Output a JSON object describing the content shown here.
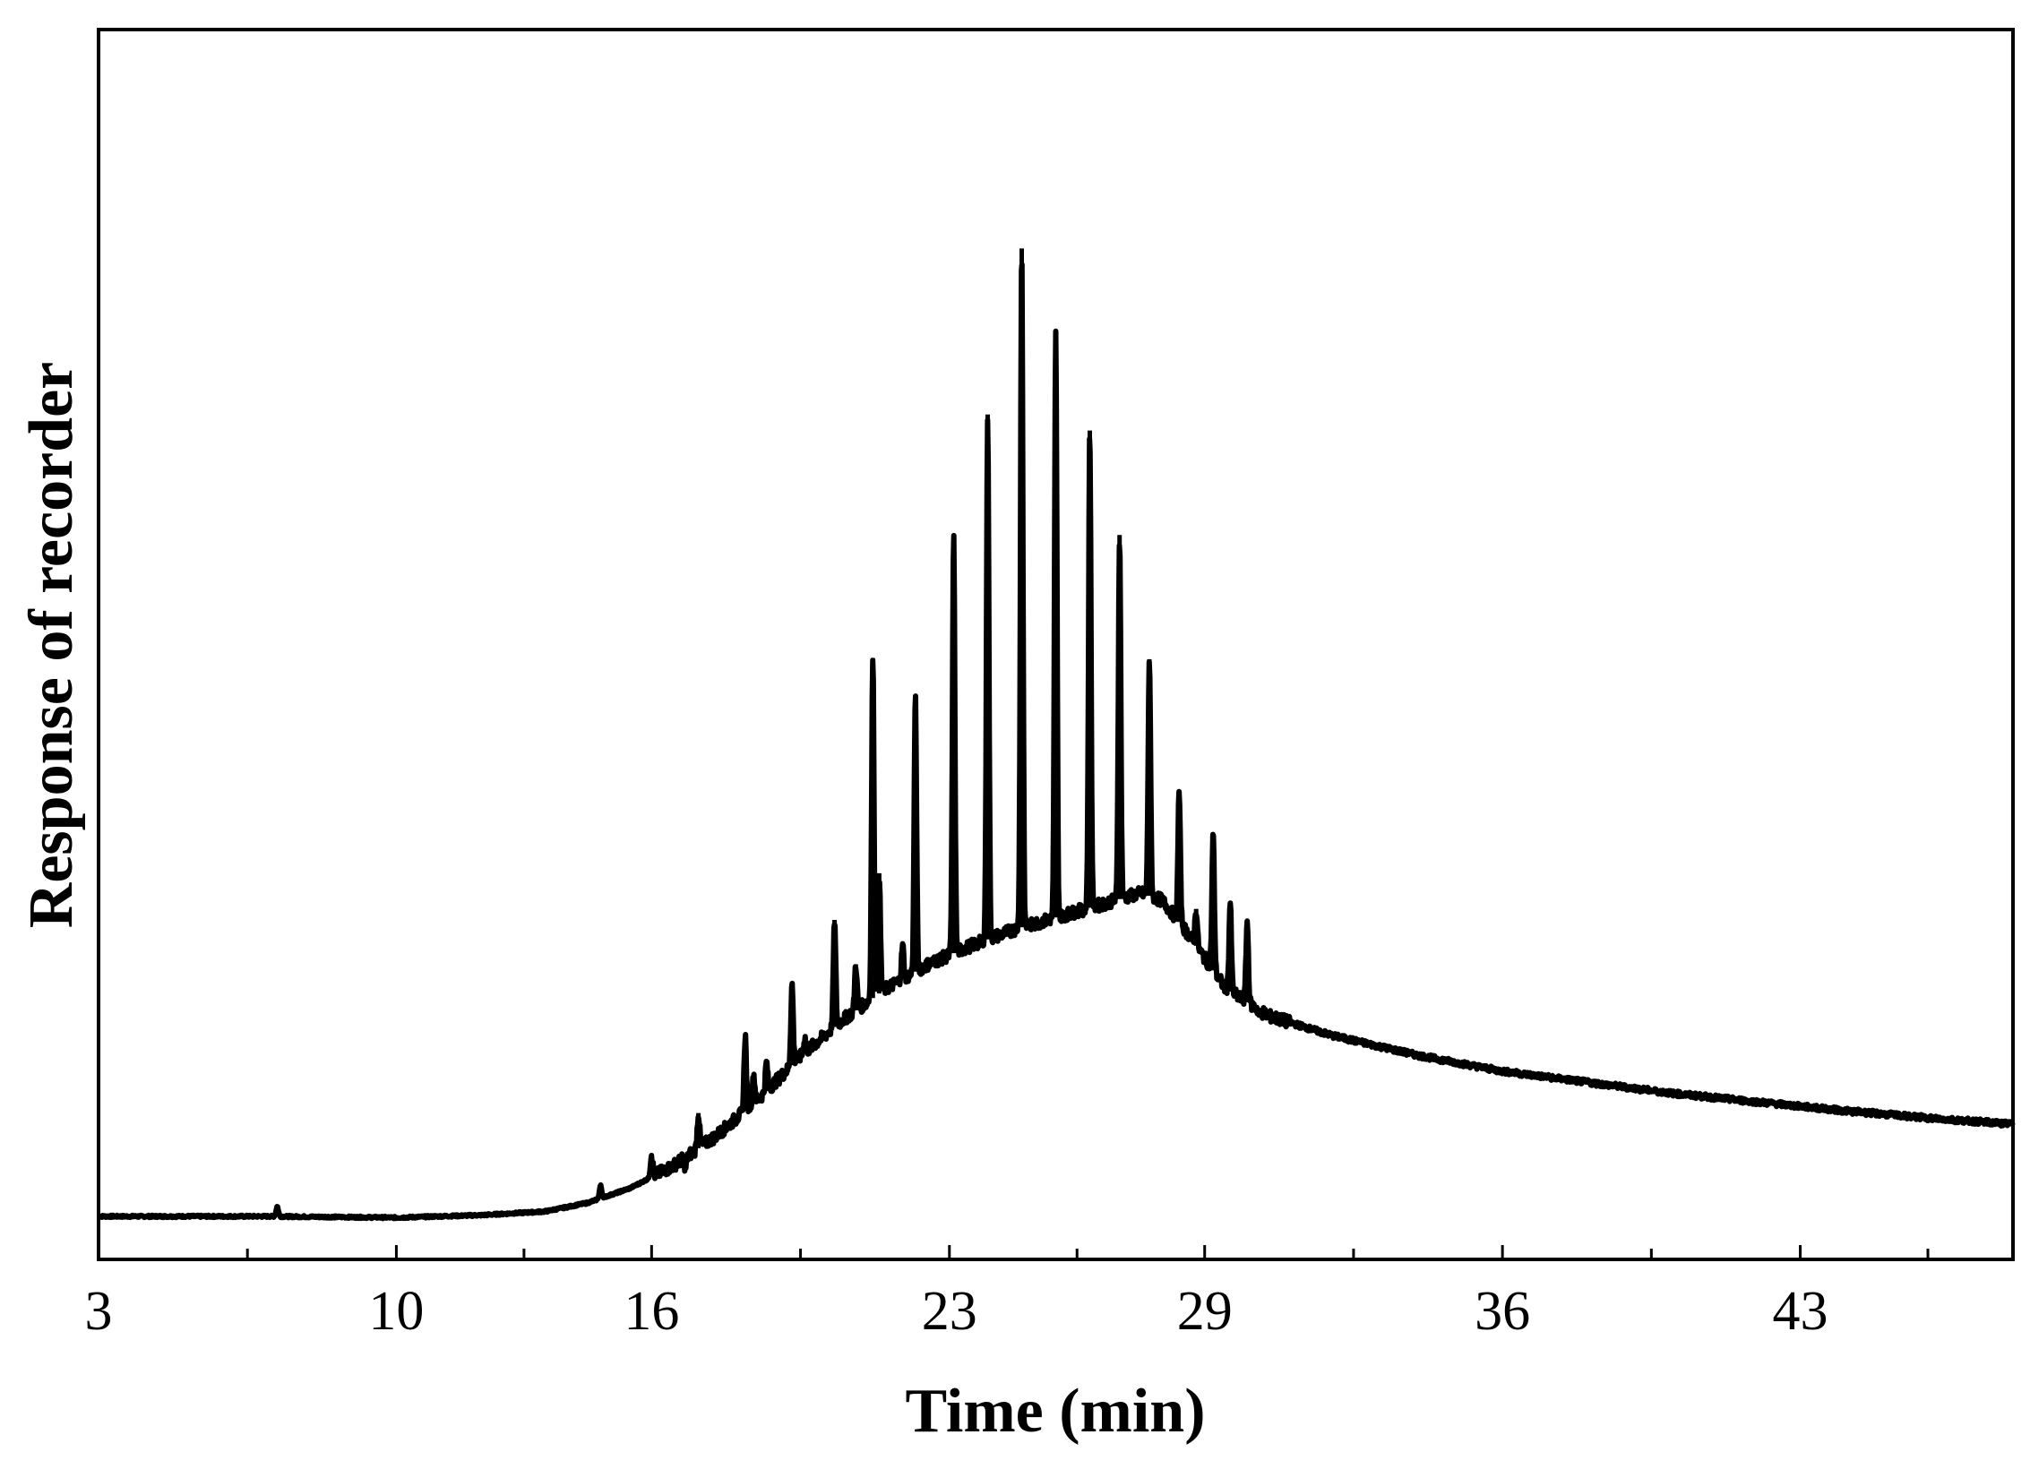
{
  "chart_data": {
    "type": "line",
    "title": "",
    "xlabel": "Time (min)",
    "ylabel": "Response of recorder",
    "xlim": [
      3,
      48
    ],
    "ylim": [
      0,
      100
    ],
    "x_tick_labels": [
      "3",
      "10",
      "16",
      "23",
      "29",
      "36",
      "43"
    ],
    "x_tick_values": [
      3,
      10,
      16,
      23,
      29,
      36,
      43
    ],
    "x_minor_ticks": [
      6.5,
      13,
      19.5,
      26,
      32.5,
      39.5,
      46
    ],
    "y_ticks_shown": false,
    "grid": false,
    "legend": "none",
    "line_color": "#000000",
    "series": [
      {
        "baseline": [
          [
            3,
            3.5
          ],
          [
            7,
            3.5
          ],
          [
            10,
            3.4
          ],
          [
            12,
            3.6
          ],
          [
            13.5,
            3.9
          ],
          [
            14.5,
            4.6
          ],
          [
            15.5,
            5.8
          ],
          [
            16.5,
            7.6
          ],
          [
            17.5,
            10.0
          ],
          [
            18.5,
            13.0
          ],
          [
            19.5,
            16.5
          ],
          [
            20.5,
            19.5
          ],
          [
            21.5,
            22.0
          ],
          [
            22.5,
            24.0
          ],
          [
            23.5,
            25.5
          ],
          [
            24.5,
            26.8
          ],
          [
            25.5,
            27.8
          ],
          [
            26.5,
            28.8
          ],
          [
            27.5,
            29.8
          ],
          [
            28.0,
            29.2
          ],
          [
            28.5,
            27.0
          ],
          [
            29.0,
            24.5
          ],
          [
            29.5,
            22.0
          ],
          [
            30.5,
            19.8
          ],
          [
            32,
            18.2
          ],
          [
            34,
            16.6
          ],
          [
            36,
            15.3
          ],
          [
            38,
            14.4
          ],
          [
            40,
            13.5
          ],
          [
            42,
            12.8
          ],
          [
            44,
            12.1
          ],
          [
            46,
            11.5
          ],
          [
            48,
            11.0
          ]
        ],
        "peaks": [
          [
            7.2,
            4.3
          ],
          [
            14.8,
            6.0
          ],
          [
            16.0,
            8.5
          ],
          [
            16.8,
            7.5
          ],
          [
            17.1,
            11.9
          ],
          [
            18.2,
            18.2
          ],
          [
            18.4,
            15.0
          ],
          [
            18.7,
            16.0
          ],
          [
            19.3,
            22.4
          ],
          [
            19.6,
            18.0
          ],
          [
            20.3,
            27.6
          ],
          [
            20.8,
            24.0
          ],
          [
            21.2,
            48.9
          ],
          [
            21.35,
            31.4
          ],
          [
            21.9,
            25.5
          ],
          [
            22.2,
            45.6
          ],
          [
            23.1,
            58.9
          ],
          [
            23.9,
            68.7
          ],
          [
            24.7,
            82.2
          ],
          [
            25.5,
            75.2
          ],
          [
            26.3,
            67.4
          ],
          [
            27.0,
            58.9
          ],
          [
            27.7,
            48.8
          ],
          [
            28.4,
            38.0
          ],
          [
            28.8,
            28.5
          ],
          [
            29.2,
            34.6
          ],
          [
            29.6,
            29.0
          ],
          [
            30.0,
            27.5
          ],
          [
            30.3,
            19.8
          ]
        ]
      }
    ]
  }
}
